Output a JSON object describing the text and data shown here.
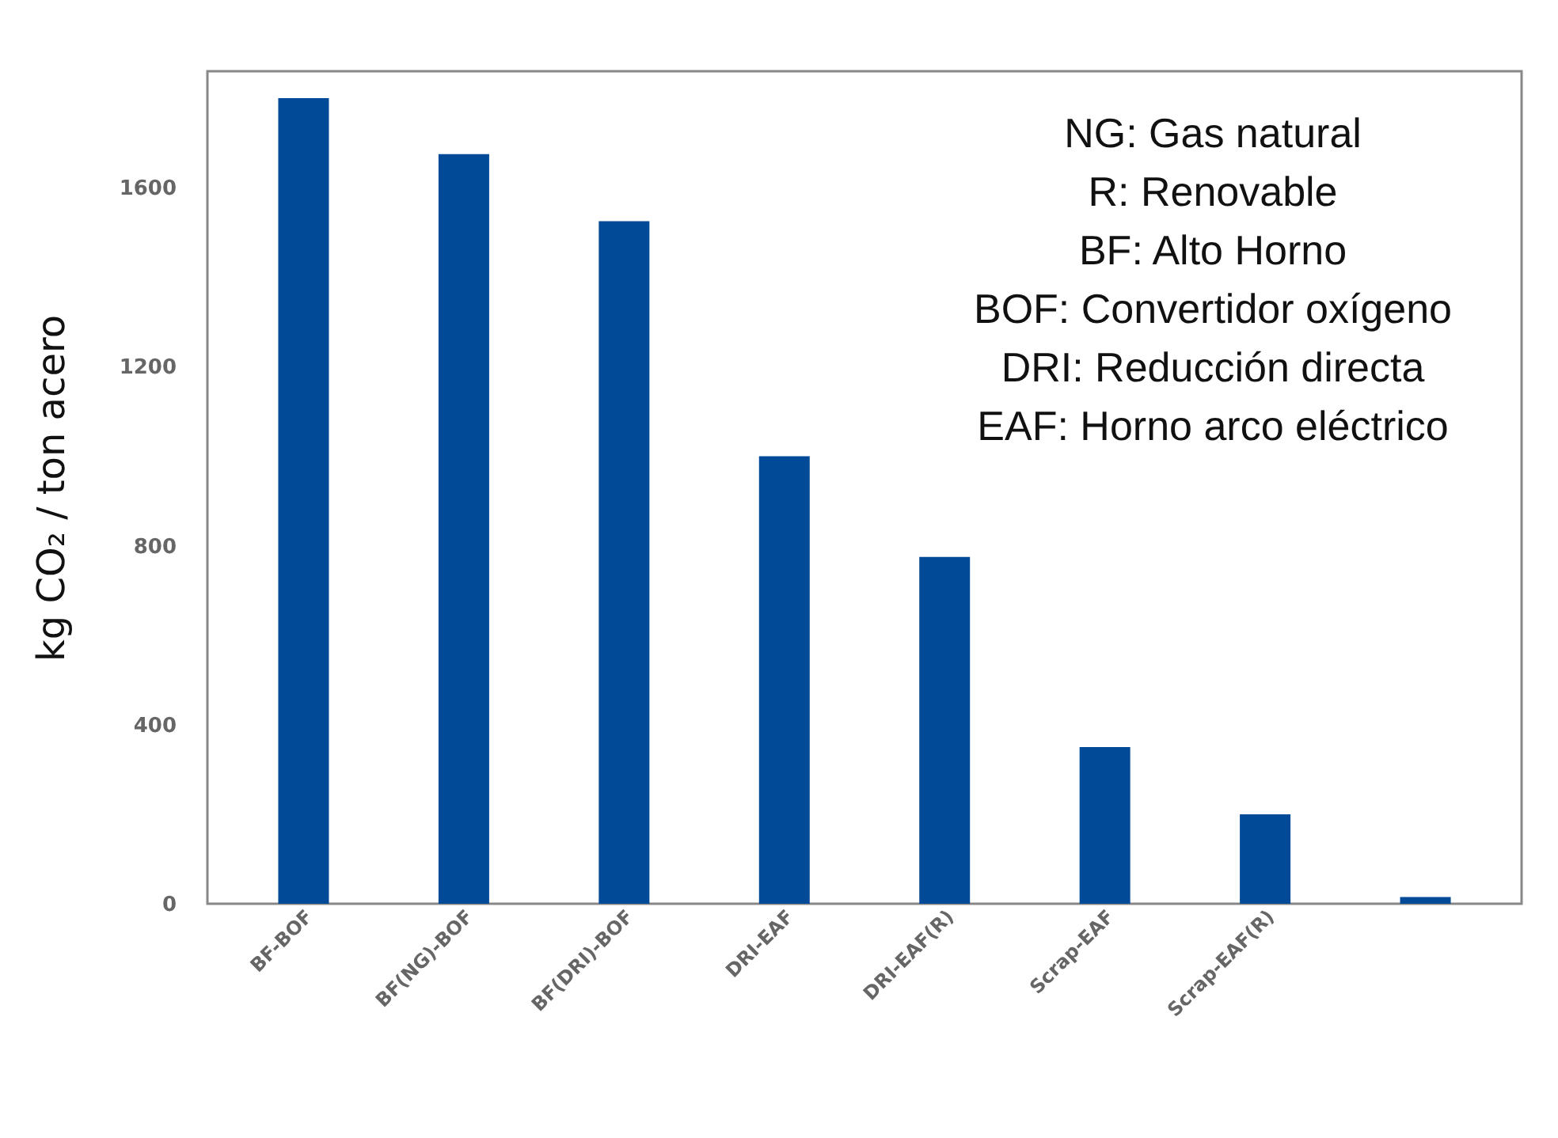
{
  "chart_data": {
    "type": "bar",
    "ylabel": "kg CO₂ / ton acero",
    "categories": [
      "BF-BOF",
      "BF(NG)-BOF",
      "BF(DRI)-BOF",
      "DRI-EAF",
      "DRI-EAF(R)",
      "Scrap-EAF",
      "Scrap-EAF(R)",
      null
    ],
    "values": [
      1800,
      1675,
      1525,
      1000,
      775,
      350,
      200,
      15
    ],
    "color": "#004a98",
    "ylim": [
      0,
      1860
    ],
    "yticks": [
      0,
      400,
      800,
      1200,
      1600
    ],
    "grid": false,
    "annotations": [
      "NG: Gas natural",
      "R: Renovable",
      "BF: Alto Horno",
      "BOF: Convertidor oxígeno",
      "DRI: Reducción directa",
      "EAF: Horno arco eléctrico"
    ]
  }
}
